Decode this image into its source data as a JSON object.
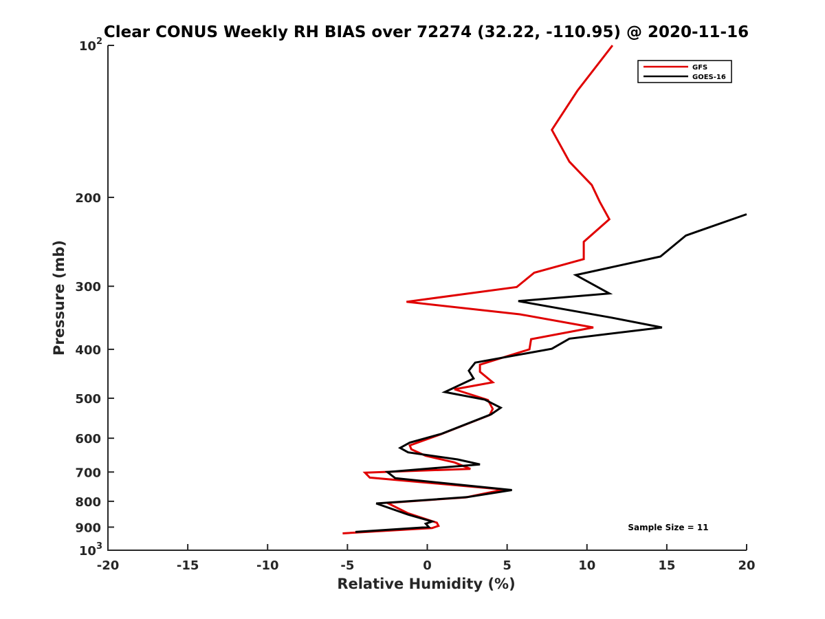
{
  "chart_data": {
    "type": "line",
    "title": "Clear CONUS Weekly RH BIAS over 72274 (32.22, -110.95) @ 2020-11-16",
    "xlabel": "Relative Humidity (%)",
    "ylabel": "Pressure (mb)",
    "xlim": [
      -20,
      20
    ],
    "ylim": [
      100,
      1000
    ],
    "y_scale": "log",
    "y_reversed": false,
    "grid": false,
    "legend_position": "top-right",
    "x_ticks": [
      -20,
      -15,
      -10,
      -5,
      0,
      5,
      10,
      15,
      20
    ],
    "x_tick_labels": [
      "-20",
      "-15",
      "-10",
      "-5",
      "0",
      "5",
      "10",
      "15",
      "20"
    ],
    "y_ticks": [
      100,
      200,
      300,
      400,
      500,
      600,
      700,
      800,
      900,
      1000
    ],
    "y_tick_labels": [
      {
        "base": "10",
        "sup": "2"
      },
      {
        "base": "200",
        "sup": ""
      },
      {
        "base": "300",
        "sup": ""
      },
      {
        "base": "400",
        "sup": ""
      },
      {
        "base": "500",
        "sup": ""
      },
      {
        "base": "600",
        "sup": ""
      },
      {
        "base": "700",
        "sup": ""
      },
      {
        "base": "800",
        "sup": ""
      },
      {
        "base": "900",
        "sup": ""
      },
      {
        "base": "10",
        "sup": "3"
      }
    ],
    "annotation": "Sample Size = 11",
    "series": [
      {
        "name": "GFS",
        "color": "#e00000",
        "points": [
          [
            11.6,
            100
          ],
          [
            9.4,
            123
          ],
          [
            7.8,
            147
          ],
          [
            8.9,
            170
          ],
          [
            10.3,
            189
          ],
          [
            10.8,
            204
          ],
          [
            11.4,
            221
          ],
          [
            9.8,
            245
          ],
          [
            9.8,
            265
          ],
          [
            6.7,
            282
          ],
          [
            5.6,
            301
          ],
          [
            -1.3,
            322
          ],
          [
            5.8,
            341
          ],
          [
            10.4,
            362
          ],
          [
            6.5,
            382
          ],
          [
            6.4,
            400
          ],
          [
            3.3,
            429
          ],
          [
            3.3,
            443
          ],
          [
            4.1,
            465
          ],
          [
            1.7,
            480
          ],
          [
            3.8,
            504
          ],
          [
            4.1,
            525
          ],
          [
            3.9,
            540
          ],
          [
            0.8,
            590
          ],
          [
            -1.1,
            620
          ],
          [
            -1.0,
            631
          ],
          [
            -0.1,
            650
          ],
          [
            1.7,
            670
          ],
          [
            2.7,
            690
          ],
          [
            -3.9,
            702
          ],
          [
            -3.6,
            718
          ],
          [
            4.8,
            758
          ],
          [
            2.4,
            786
          ],
          [
            -2.5,
            806
          ],
          [
            -1.2,
            845
          ],
          [
            0.6,
            882
          ],
          [
            0.7,
            895
          ],
          [
            0.3,
            904
          ],
          [
            -5.3,
            926
          ]
        ]
      },
      {
        "name": "GOES-16",
        "color": "#000000",
        "points": [
          [
            20.0,
            216
          ],
          [
            16.2,
            238
          ],
          [
            14.6,
            262
          ],
          [
            9.3,
            285
          ],
          [
            11.4,
            310
          ],
          [
            5.7,
            321
          ],
          [
            11.5,
            346
          ],
          [
            14.7,
            362
          ],
          [
            8.9,
            381
          ],
          [
            7.8,
            399
          ],
          [
            3.0,
            425
          ],
          [
            2.6,
            441
          ],
          [
            2.9,
            457
          ],
          [
            1.1,
            486
          ],
          [
            3.6,
            503
          ],
          [
            4.6,
            522
          ],
          [
            4.0,
            538
          ],
          [
            0.9,
            588
          ],
          [
            -1.1,
            612
          ],
          [
            -1.7,
            627
          ],
          [
            -1.2,
            640
          ],
          [
            1.9,
            661
          ],
          [
            3.3,
            676
          ],
          [
            -2.5,
            700
          ],
          [
            -2.0,
            720
          ],
          [
            5.3,
            760
          ],
          [
            2.5,
            785
          ],
          [
            -3.2,
            808
          ],
          [
            -1.2,
            850
          ],
          [
            0.3,
            877
          ],
          [
            -0.1,
            886
          ],
          [
            0.1,
            900
          ],
          [
            -4.5,
            920
          ]
        ]
      }
    ]
  }
}
